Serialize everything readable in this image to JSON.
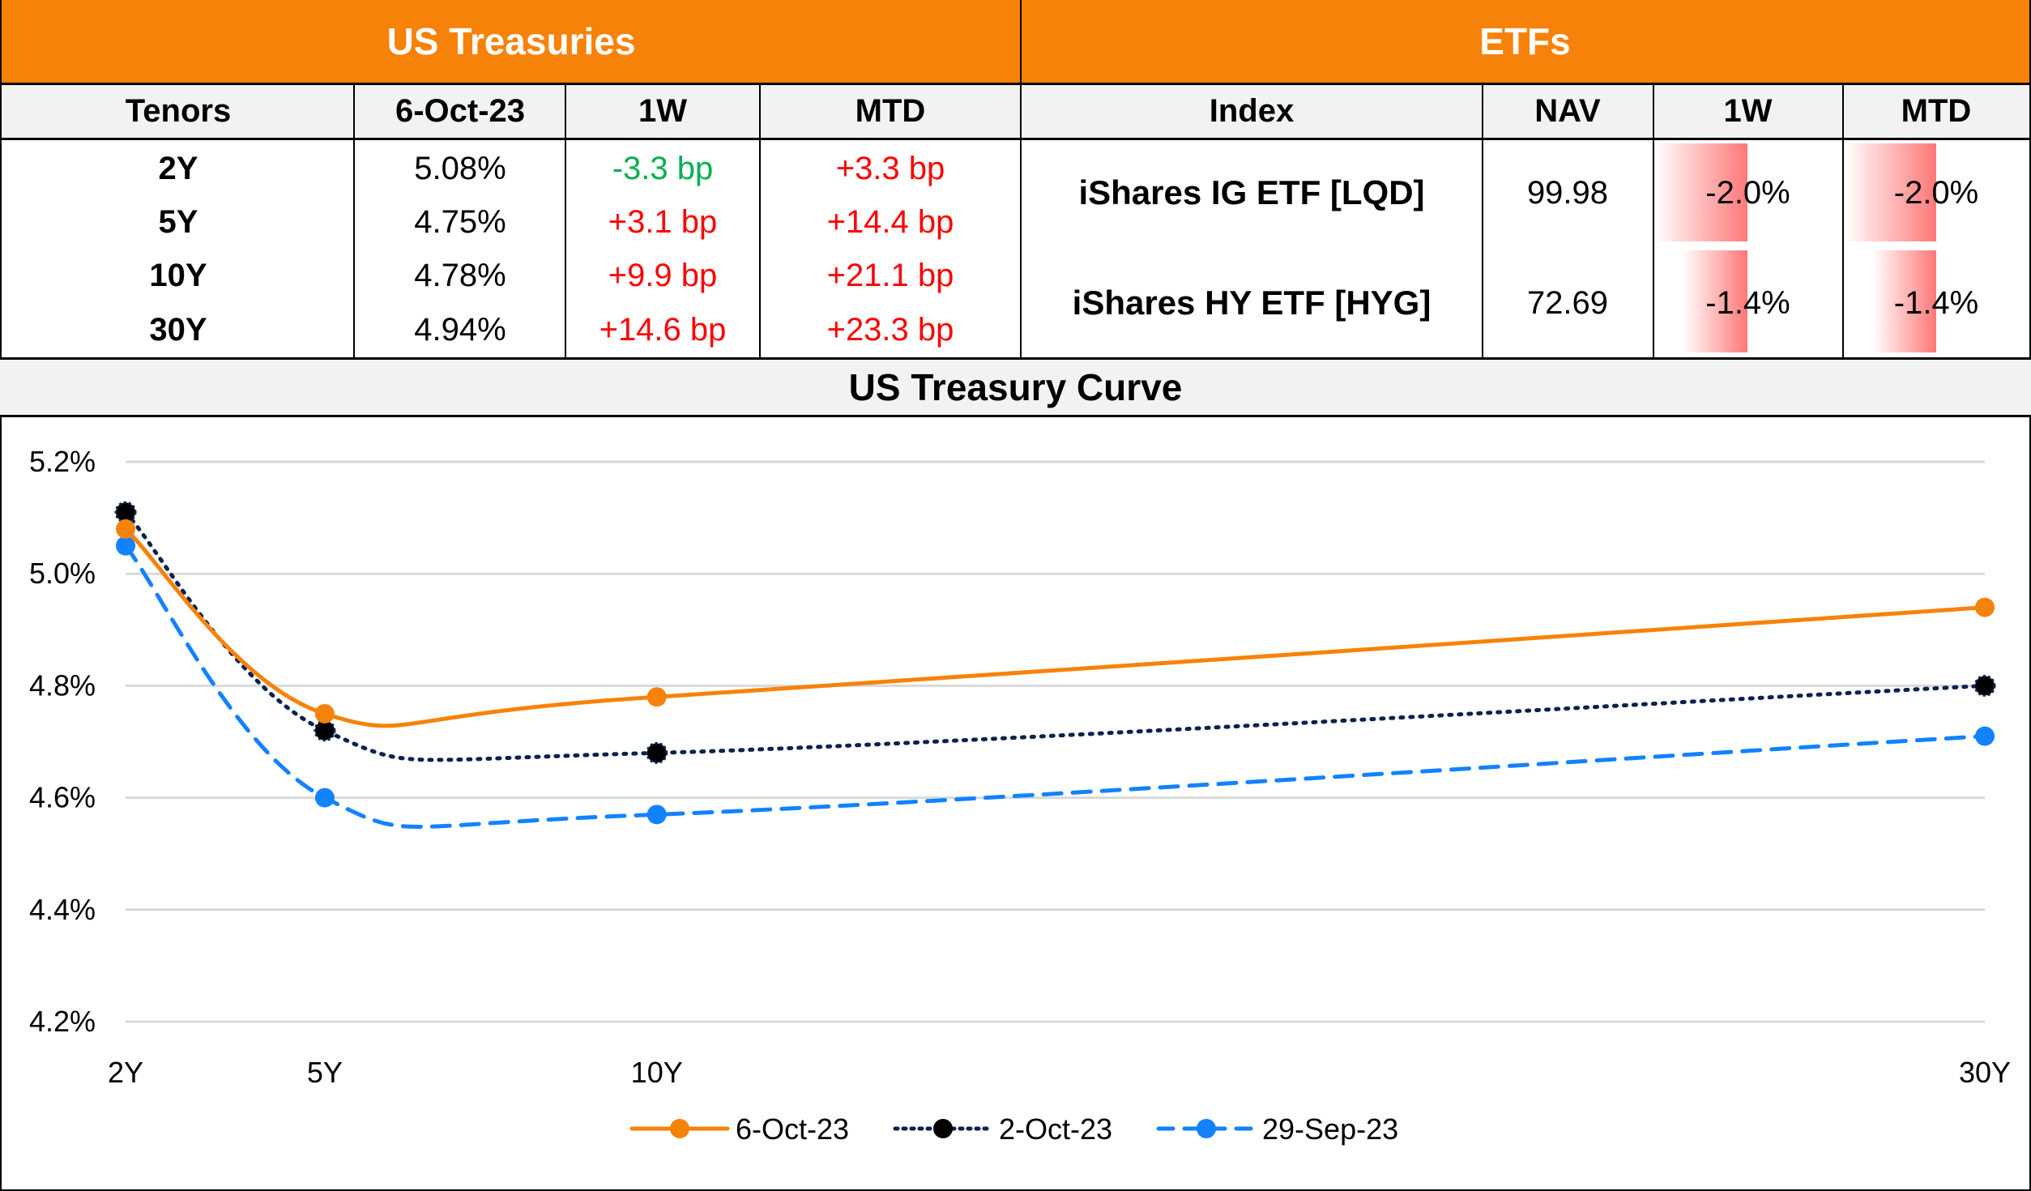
{
  "treasuries": {
    "title": "US Treasuries",
    "headers": [
      "Tenors",
      "6-Oct-23",
      "1W",
      "MTD"
    ],
    "rows": [
      {
        "tenor": "2Y",
        "yield": "5.08%",
        "w1": "-3.3 bp",
        "w1_dir": "neg",
        "mtd": "+3.3 bp",
        "mtd_dir": "pos"
      },
      {
        "tenor": "5Y",
        "yield": "4.75%",
        "w1": "+3.1 bp",
        "w1_dir": "pos",
        "mtd": "+14.4 bp",
        "mtd_dir": "pos"
      },
      {
        "tenor": "10Y",
        "yield": "4.78%",
        "w1": "+9.9 bp",
        "w1_dir": "pos",
        "mtd": "+21.1 bp",
        "mtd_dir": "pos"
      },
      {
        "tenor": "30Y",
        "yield": "4.94%",
        "w1": "+14.6 bp",
        "w1_dir": "pos",
        "mtd": "+23.3 bp",
        "mtd_dir": "pos"
      }
    ]
  },
  "etfs": {
    "title": "ETFs",
    "headers": [
      "Index",
      "NAV",
      "1W",
      "MTD"
    ],
    "rows": [
      {
        "name": "iShares IG ETF [LQD]",
        "nav": "99.98",
        "w1": "-2.0%",
        "mtd": "-2.0%",
        "w1_value": -2.0,
        "mtd_value": -2.0
      },
      {
        "name": "iShares HY ETF [HYG]",
        "nav": "72.69",
        "w1": "-1.4%",
        "mtd": "-1.4%",
        "w1_value": -1.4,
        "mtd_value": -1.4
      }
    ]
  },
  "colors": {
    "accent": "#f7820a",
    "positive_change": "#ff0000",
    "negative_change": "#00b050",
    "databar": "#ff7777"
  },
  "chart_data": {
    "type": "line",
    "title": "US Treasury Curve",
    "xlabel": "",
    "ylabel": "",
    "x": [
      2,
      5,
      10,
      30
    ],
    "categories": [
      "2Y",
      "5Y",
      "10Y",
      "30Y"
    ],
    "ylim": [
      4.2,
      5.2
    ],
    "yticks": [
      "5.2%",
      "5.0%",
      "4.8%",
      "4.6%",
      "4.4%",
      "4.2%"
    ],
    "ytick_values": [
      5.2,
      5.0,
      4.8,
      4.6,
      4.4,
      4.2
    ],
    "grid": true,
    "legend": "bottom",
    "smooth": true,
    "series": [
      {
        "name": "6-Oct-23",
        "values": [
          5.08,
          4.75,
          4.78,
          4.94
        ],
        "color": "#f7820a",
        "style": "solid"
      },
      {
        "name": "2-Oct-23",
        "values": [
          5.11,
          4.72,
          4.68,
          4.8
        ],
        "color": "#0b2150",
        "style": "dotted"
      },
      {
        "name": "29-Sep-23",
        "values": [
          5.05,
          4.6,
          4.57,
          4.71
        ],
        "color": "#1282ff",
        "style": "dashed"
      }
    ]
  }
}
